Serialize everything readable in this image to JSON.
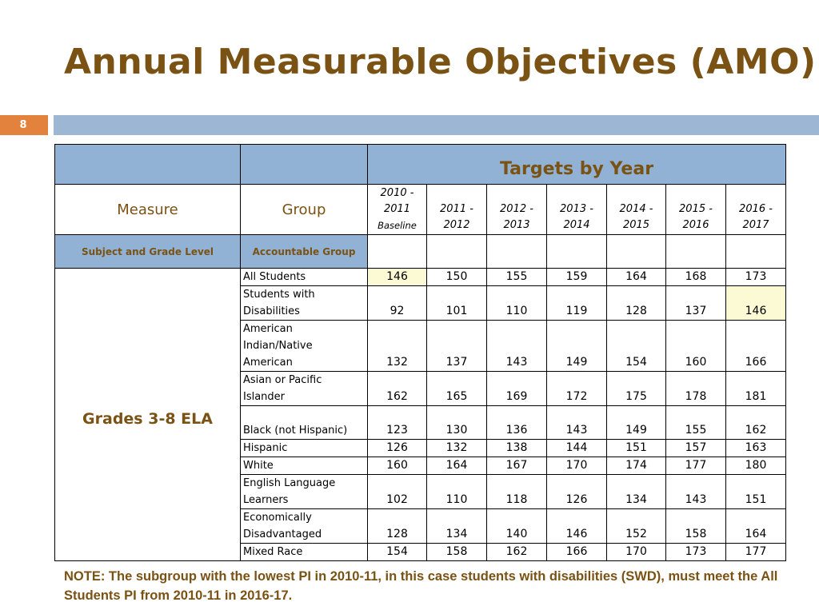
{
  "title": "Annual Measurable Objectives (AMO)",
  "page_number": "8",
  "table": {
    "targets_header": "Targets by Year",
    "measure_header": "Measure",
    "group_header": "Group",
    "years": [
      {
        "line1": "2010 -",
        "line2": "2011",
        "line3": "Baseline"
      },
      {
        "line1": "2011 -",
        "line2": "2012"
      },
      {
        "line1": "2012 -",
        "line2": "2013"
      },
      {
        "line1": "2013 -",
        "line2": "2014"
      },
      {
        "line1": "2014 -",
        "line2": "2015"
      },
      {
        "line1": "2015 -",
        "line2": "2016"
      },
      {
        "line1": "2016 -",
        "line2": "2017"
      }
    ],
    "subject_subheader": "Subject and Grade Level",
    "group_subheader": "Accountable Group",
    "subject": "Grades 3-8 ELA",
    "rows": [
      {
        "group": "All Students",
        "values": [
          "146",
          "150",
          "155",
          "159",
          "164",
          "168",
          "173"
        ]
      },
      {
        "group": "Students with Disabilities",
        "values": [
          "92",
          "101",
          "110",
          "119",
          "128",
          "137",
          "146"
        ]
      },
      {
        "group": "American Indian/Native American",
        "values": [
          "132",
          "137",
          "143",
          "149",
          "154",
          "160",
          "166"
        ]
      },
      {
        "group": "Asian or Pacific Islander",
        "values": [
          "162",
          "165",
          "169",
          "172",
          "175",
          "178",
          "181"
        ]
      },
      {
        "group": "Black (not Hispanic)",
        "values": [
          "123",
          "130",
          "136",
          "143",
          "149",
          "155",
          "162"
        ]
      },
      {
        "group": "Hispanic",
        "values": [
          "126",
          "132",
          "138",
          "144",
          "151",
          "157",
          "163"
        ]
      },
      {
        "group": "White",
        "values": [
          "160",
          "164",
          "167",
          "170",
          "174",
          "177",
          "180"
        ]
      },
      {
        "group": "English Language Learners",
        "values": [
          "102",
          "110",
          "118",
          "126",
          "134",
          "143",
          "151"
        ]
      },
      {
        "group": "Economically Disadvantaged",
        "values": [
          "128",
          "134",
          "140",
          "146",
          "152",
          "158",
          "164"
        ]
      },
      {
        "group": "Mixed Race",
        "values": [
          "154",
          "158",
          "162",
          "166",
          "170",
          "173",
          "177"
        ]
      }
    ]
  },
  "note": "NOTE: The subgroup with the lowest PI in 2010-11, in this case students with disabilities (SWD), must meet the All Students PI from 2010-11 in 2016-17.",
  "colors": {
    "title": "#7a5214",
    "header_blue": "#91b2d4",
    "bar_blue": "#9cb6d3",
    "page_badge": "#e3823c",
    "highlight": "#fcfad4"
  }
}
